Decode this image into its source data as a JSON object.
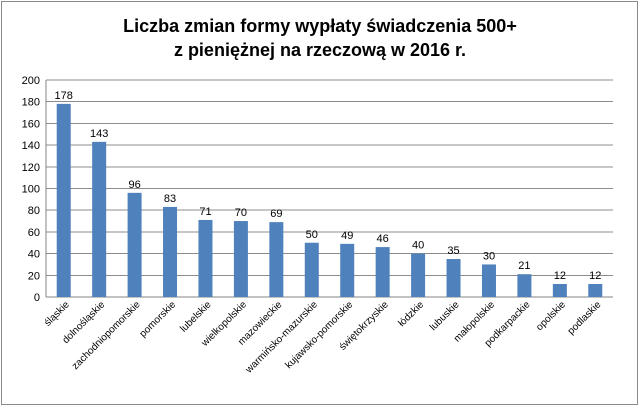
{
  "chart_data": {
    "type": "bar",
    "title_line1": "Liczba zmian formy wypłaty świadczenia 500+",
    "title_line2": "z pieniężnej na rzeczową w 2016 r.",
    "categories": [
      "śląskie",
      "dolnośląskie",
      "zachodniopomorskie",
      "pomorskie",
      "lubelskie",
      "wielkopolskie",
      "mazowieckie",
      "warmińsko-mazurskie",
      "kujawsko-pomorskie",
      "świętokrzyskie",
      "łódzkie",
      "lubuskie",
      "małopolskie",
      "podkarpackie",
      "opolskie",
      "podlaskie"
    ],
    "values": [
      178,
      143,
      96,
      83,
      71,
      70,
      69,
      50,
      49,
      46,
      40,
      35,
      30,
      21,
      12,
      12
    ],
    "ylim": [
      0,
      200
    ],
    "yticks": [
      0,
      20,
      40,
      60,
      80,
      100,
      120,
      140,
      160,
      180,
      200
    ],
    "grid": true,
    "bar_color": "#4f81bd",
    "grid_color": "#8c8c8c"
  }
}
